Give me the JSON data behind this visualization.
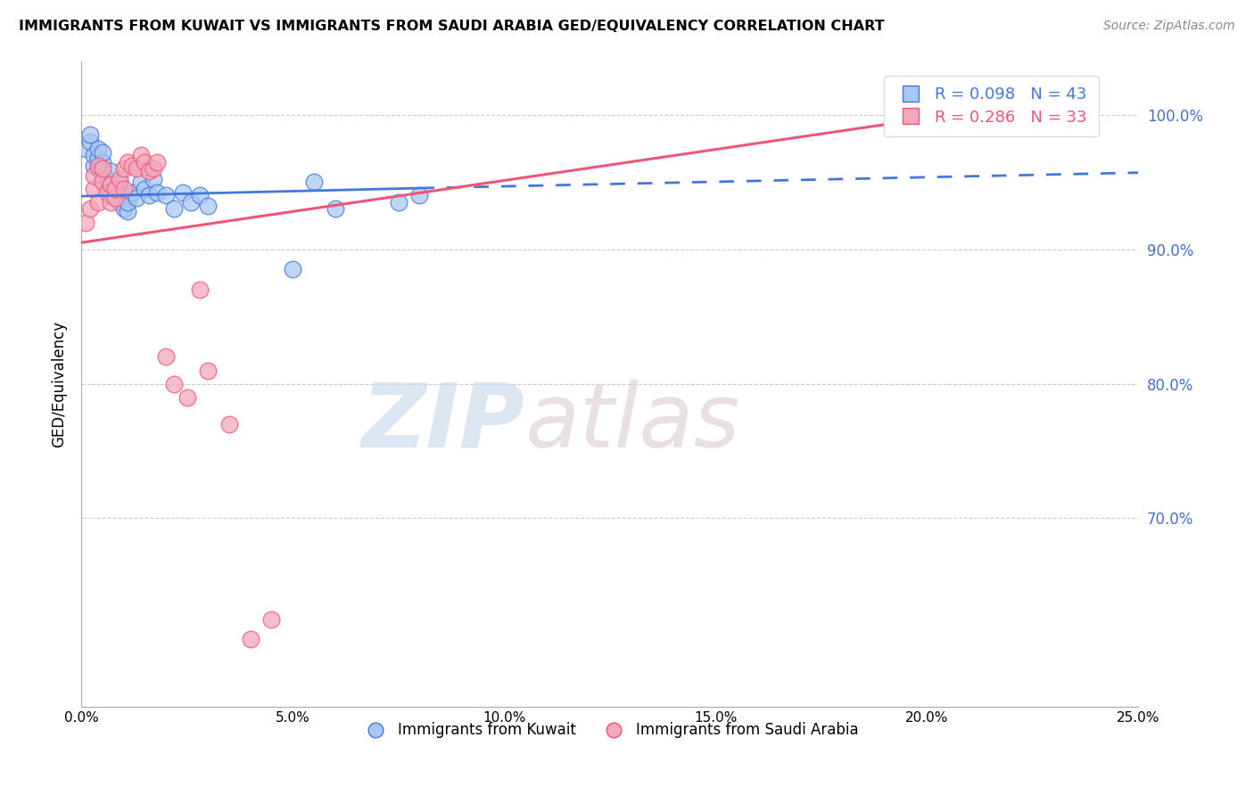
{
  "title": "IMMIGRANTS FROM KUWAIT VS IMMIGRANTS FROM SAUDI ARABIA GED/EQUIVALENCY CORRELATION CHART",
  "source": "Source: ZipAtlas.com",
  "ylabel": "GED/Equivalency",
  "xlim": [
    0.0,
    0.25
  ],
  "ylim": [
    0.56,
    1.04
  ],
  "yticks": [
    1.0,
    0.9,
    0.8,
    0.7
  ],
  "ytick_labels": [
    "100.0%",
    "90.0%",
    "80.0%",
    "70.0%"
  ],
  "ytick_color": "#4472c4",
  "color_kuwait": "#a8c8f0",
  "color_saudi": "#f4a8bc",
  "color_line_kuwait": "#4477dd",
  "color_line_saudi": "#ee5577",
  "color_legend_r1": "#4477dd",
  "color_legend_r2": "#ee5577",
  "kuwait_x": [
    0.001,
    0.002,
    0.002,
    0.003,
    0.003,
    0.004,
    0.004,
    0.004,
    0.005,
    0.005,
    0.005,
    0.006,
    0.006,
    0.007,
    0.007,
    0.007,
    0.008,
    0.008,
    0.009,
    0.009,
    0.009,
    0.01,
    0.01,
    0.011,
    0.011,
    0.012,
    0.013,
    0.014,
    0.015,
    0.016,
    0.017,
    0.018,
    0.02,
    0.022,
    0.024,
    0.026,
    0.028,
    0.03,
    0.05,
    0.055,
    0.06,
    0.075,
    0.08
  ],
  "kuwait_y": [
    0.975,
    0.98,
    0.985,
    0.962,
    0.97,
    0.96,
    0.968,
    0.975,
    0.955,
    0.965,
    0.972,
    0.945,
    0.952,
    0.94,
    0.948,
    0.958,
    0.938,
    0.945,
    0.935,
    0.942,
    0.95,
    0.93,
    0.938,
    0.928,
    0.935,
    0.942,
    0.938,
    0.95,
    0.945,
    0.94,
    0.952,
    0.942,
    0.94,
    0.93,
    0.942,
    0.935,
    0.94,
    0.932,
    0.885,
    0.95,
    0.93,
    0.935,
    0.94
  ],
  "saudi_x": [
    0.001,
    0.002,
    0.003,
    0.003,
    0.004,
    0.004,
    0.005,
    0.005,
    0.006,
    0.007,
    0.007,
    0.008,
    0.008,
    0.009,
    0.01,
    0.01,
    0.011,
    0.012,
    0.013,
    0.014,
    0.015,
    0.016,
    0.017,
    0.018,
    0.02,
    0.022,
    0.025,
    0.028,
    0.03,
    0.035,
    0.04,
    0.045,
    0.21
  ],
  "saudi_y": [
    0.92,
    0.93,
    0.945,
    0.955,
    0.935,
    0.962,
    0.95,
    0.96,
    0.942,
    0.935,
    0.948,
    0.938,
    0.945,
    0.952,
    0.945,
    0.96,
    0.965,
    0.962,
    0.96,
    0.97,
    0.965,
    0.958,
    0.96,
    0.965,
    0.82,
    0.8,
    0.79,
    0.87,
    0.81,
    0.77,
    0.61,
    0.625,
    1.0
  ],
  "line_kuwait_x0": 0.0,
  "line_kuwait_y0": 0.9395,
  "line_kuwait_x1": 0.08,
  "line_kuwait_y1": 0.9455,
  "line_kuwait_x1_dashed": 0.25,
  "line_kuwait_y1_dashed": 0.957,
  "line_saudi_x0": 0.0,
  "line_saudi_y0": 0.905,
  "line_saudi_x1": 0.21,
  "line_saudi_y1": 1.002
}
